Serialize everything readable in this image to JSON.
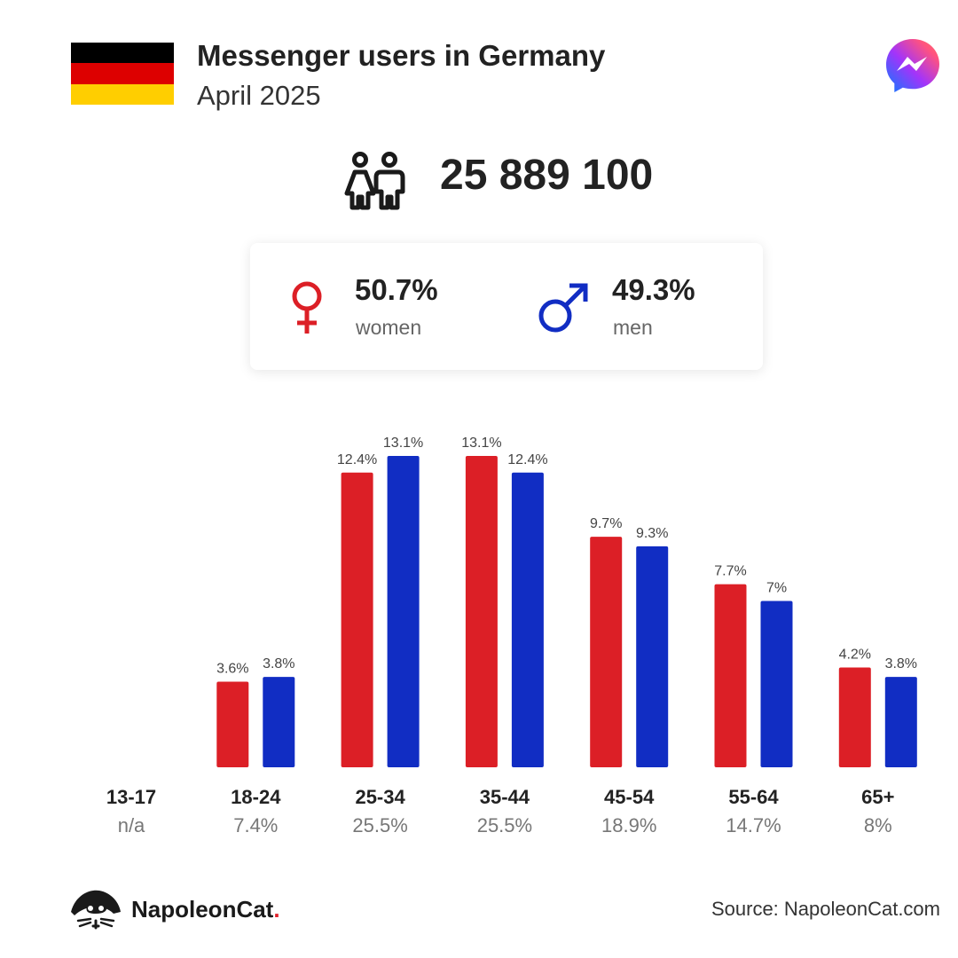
{
  "header": {
    "title": "Messenger users in Germany",
    "subtitle": "April 2025",
    "flag_colors": [
      "#000000",
      "#dd0000",
      "#ffce00"
    ],
    "app_icon": "messenger-logo-icon"
  },
  "total": {
    "icon": "people-icon",
    "value": "25 889 100"
  },
  "gender": {
    "women": {
      "pct": "50.7%",
      "label": "women",
      "icon": "female-symbol-icon",
      "color": "#dc1f26"
    },
    "men": {
      "pct": "49.3%",
      "label": "men",
      "icon": "male-symbol-icon",
      "color": "#112dc3"
    }
  },
  "chart_data": {
    "type": "bar",
    "categories": [
      "13-17",
      "18-24",
      "25-34",
      "35-44",
      "45-54",
      "55-64",
      "65+"
    ],
    "totals": [
      "n/a",
      "7.4%",
      "25.5%",
      "25.5%",
      "18.9%",
      "14.7%",
      "8%"
    ],
    "series": [
      {
        "name": "women",
        "color": "#dc1f26",
        "values": [
          null,
          3.6,
          12.4,
          13.1,
          9.7,
          7.7,
          4.2
        ],
        "labels": [
          "",
          "3.6%",
          "12.4%",
          "13.1%",
          "9.7%",
          "7.7%",
          "4.2%"
        ]
      },
      {
        "name": "men",
        "color": "#112dc3",
        "values": [
          null,
          3.8,
          13.1,
          12.4,
          9.3,
          7.0,
          3.8
        ],
        "labels": [
          "",
          "3.8%",
          "13.1%",
          "12.4%",
          "9.3%",
          "7%",
          "3.8%"
        ]
      }
    ],
    "ylim": [
      0,
      13.1
    ],
    "grid": false,
    "legend": "none"
  },
  "footer": {
    "brand_name": "NapoleonCat",
    "brand_dot": ".",
    "brand_icon": "napoleoncat-logo-icon",
    "source": "Source: NapoleonCat.com"
  }
}
